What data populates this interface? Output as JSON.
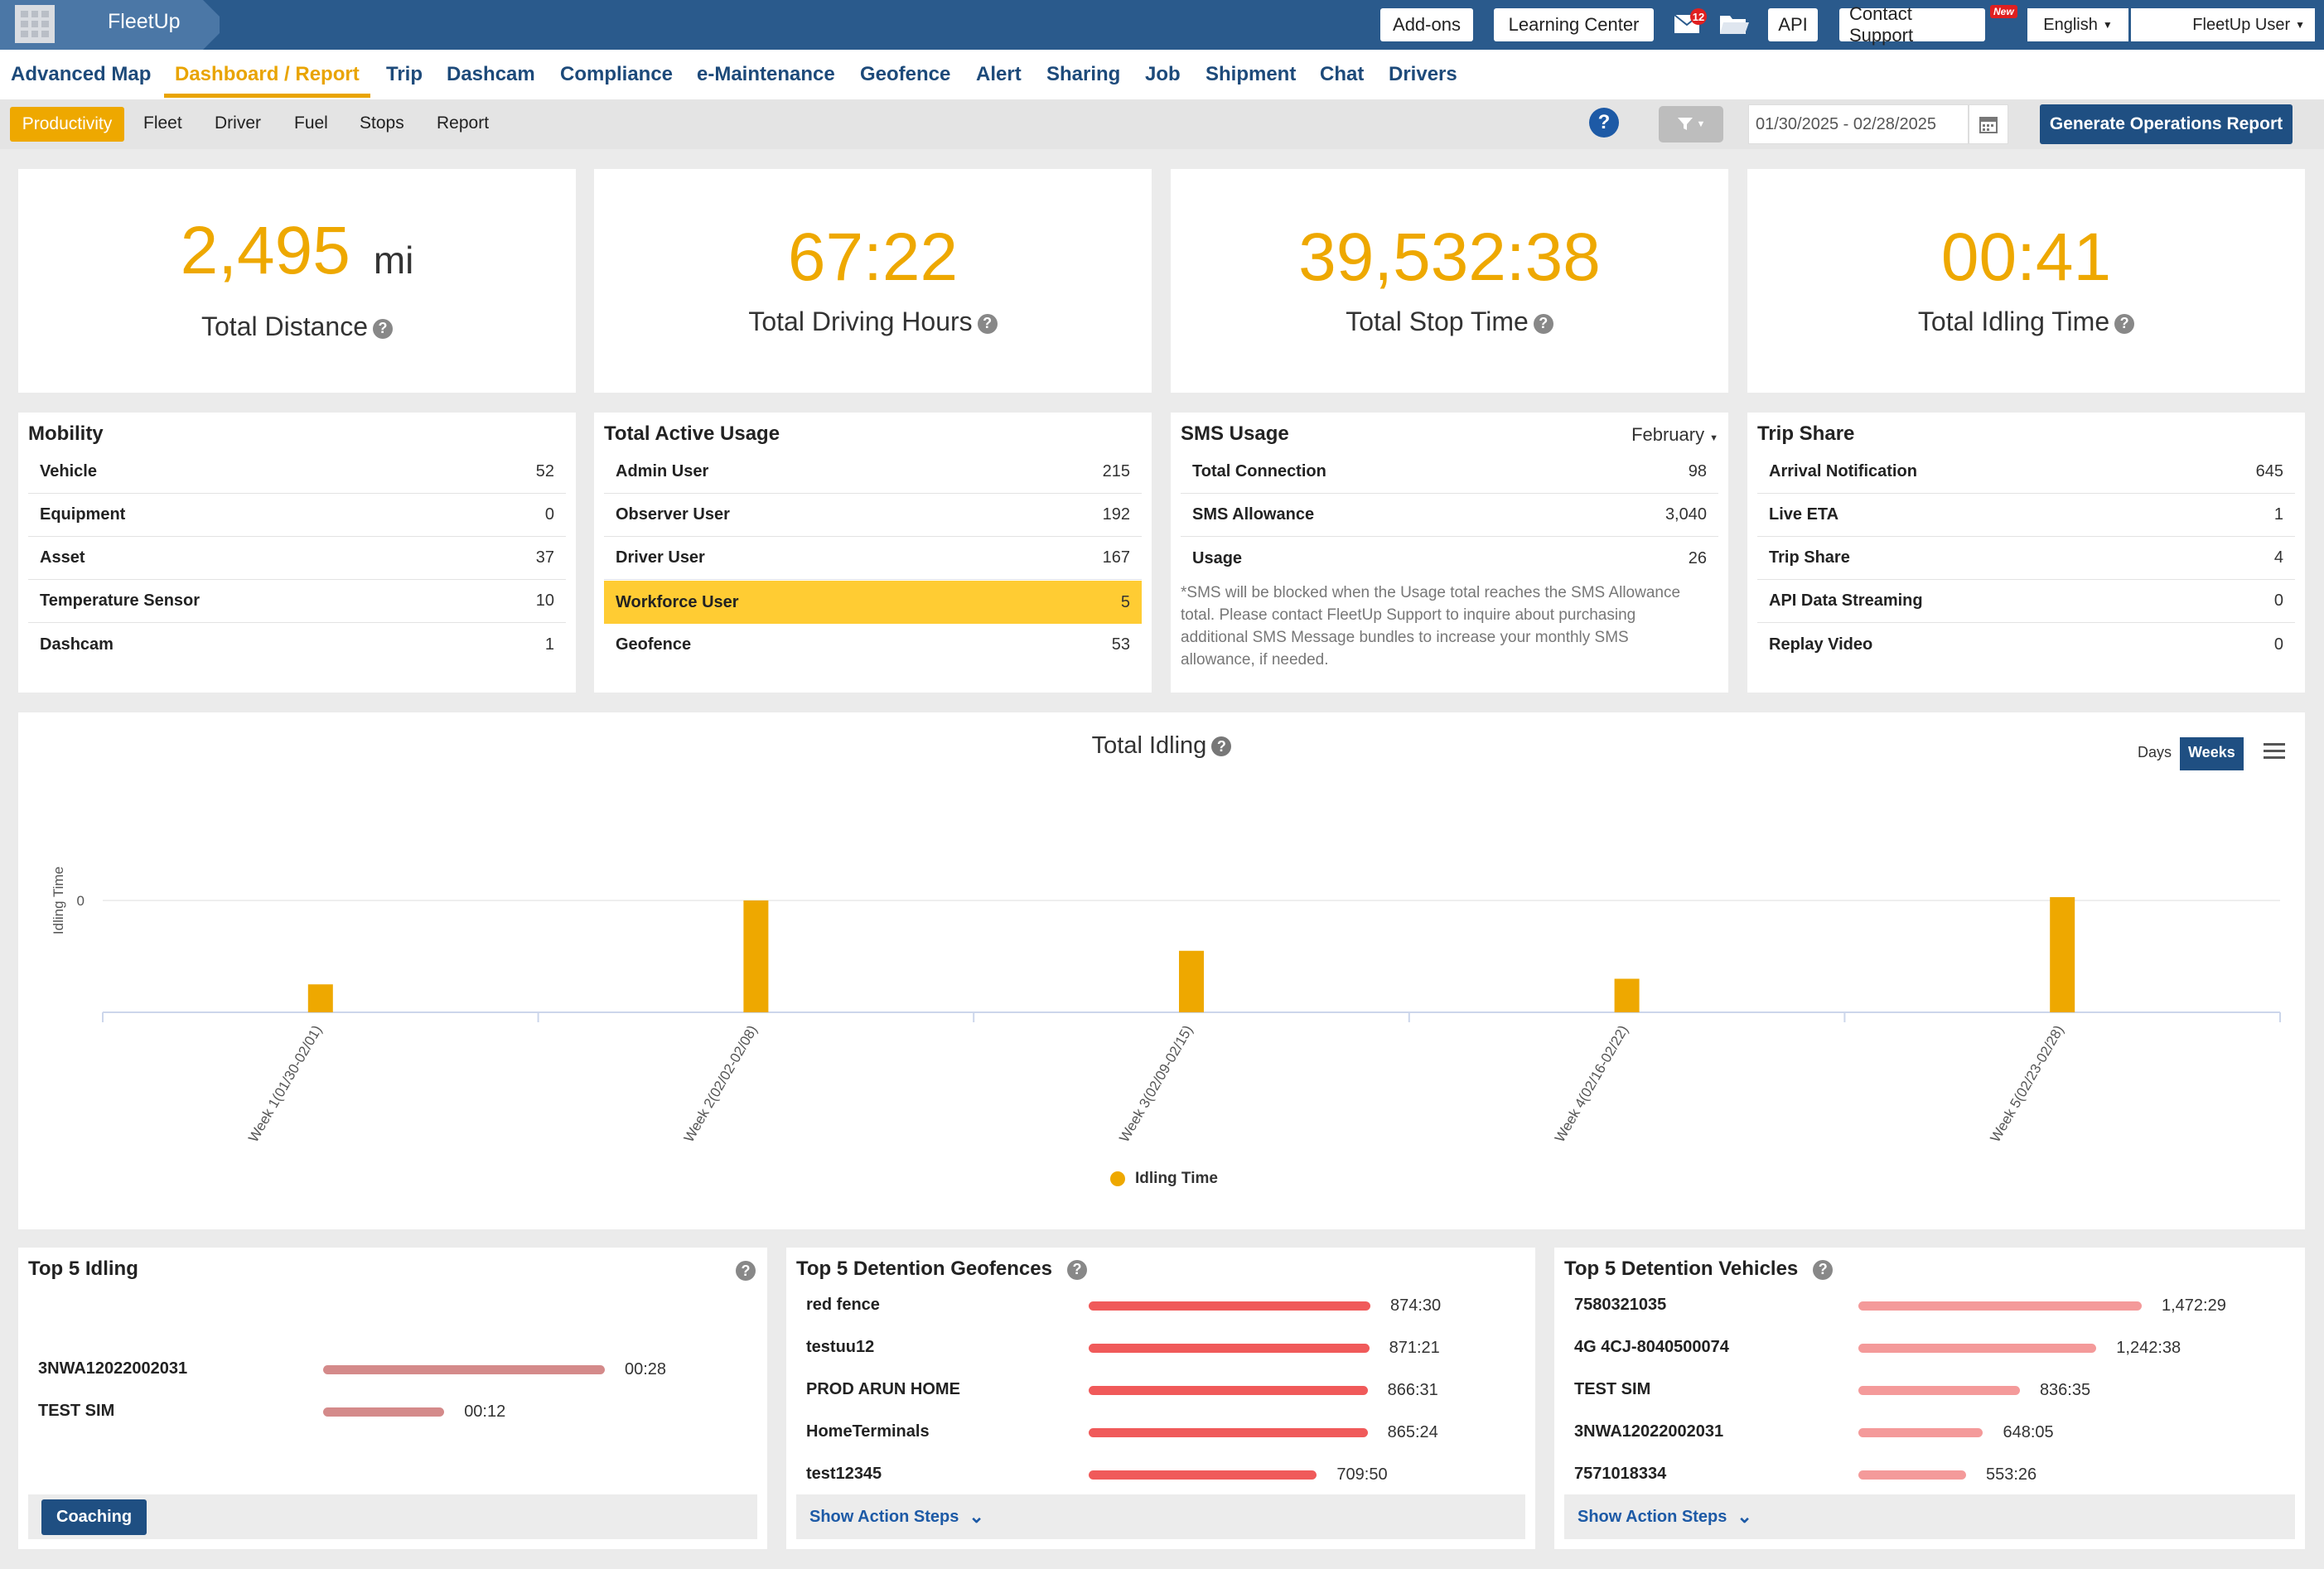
{
  "app": {
    "brand": "FleetUp",
    "mail_badge": "12",
    "new_badge": "New"
  },
  "topbar": {
    "addons": "Add-ons",
    "learning": "Learning Center",
    "api": "API",
    "contact": "Contact Support",
    "language": "English",
    "user": "FleetUp User"
  },
  "nav": [
    "Advanced Map",
    "Dashboard / Report",
    "Trip",
    "Dashcam",
    "Compliance",
    "e-Maintenance",
    "Geofence",
    "Alert",
    "Sharing",
    "Job",
    "Shipment",
    "Chat",
    "Drivers"
  ],
  "subnav": {
    "active": "Productivity",
    "items": [
      "Fleet",
      "Driver",
      "Fuel",
      "Stops",
      "Report"
    ]
  },
  "toolbar": {
    "date_range": "01/30/2025 - 02/28/2025",
    "generate": "Generate Operations Report",
    "help": "?"
  },
  "stats": [
    {
      "value": "2,495",
      "unit": "mi",
      "label": "Total Distance"
    },
    {
      "value": "67:22",
      "label": "Total Driving Hours"
    },
    {
      "value": "39,532:38",
      "label": "Total Stop Time"
    },
    {
      "value": "00:41",
      "label": "Total Idling Time"
    }
  ],
  "mobility": {
    "title": "Mobility",
    "rows": [
      [
        "Vehicle",
        "52"
      ],
      [
        "Equipment",
        "0"
      ],
      [
        "Asset",
        "37"
      ],
      [
        "Temperature Sensor",
        "10"
      ],
      [
        "Dashcam",
        "1"
      ]
    ]
  },
  "active_usage": {
    "title": "Total Active Usage",
    "rows": [
      [
        "Admin User",
        "215"
      ],
      [
        "Observer User",
        "192"
      ],
      [
        "Driver User",
        "167"
      ],
      [
        "Workforce User",
        "5"
      ],
      [
        "Geofence",
        "53"
      ]
    ]
  },
  "sms": {
    "title": "SMS Usage",
    "month": "February",
    "rows": [
      [
        "Total Connection",
        "98"
      ],
      [
        "SMS Allowance",
        "3,040"
      ],
      [
        "Usage",
        "26"
      ]
    ],
    "note": "*SMS will be blocked when the Usage total reaches the SMS Allowance total. Please contact FleetUp Support to inquire about purchasing additional SMS Message bundles to increase your monthly SMS allowance, if needed."
  },
  "trip_share": {
    "title": "Trip Share",
    "rows": [
      [
        "Arrival Notification",
        "645"
      ],
      [
        "Live ETA",
        "1"
      ],
      [
        "Trip Share",
        "4"
      ],
      [
        "API Data Streaming",
        "0"
      ],
      [
        "Replay Video",
        "0"
      ]
    ]
  },
  "chart_data": {
    "type": "bar",
    "title": "Total Idling",
    "ylabel": "Idling Time",
    "xlabel": "",
    "y_tick": "0",
    "categories": [
      "Week 1(01/30-02/01)",
      "Week 2(02/02-02/08)",
      "Week 3(02/09-02/15)",
      "Week 4(02/16-02/22)",
      "Week 5(02/23-02/28)"
    ],
    "series": [
      {
        "name": "Idling Time",
        "values": [
          0.25,
          1.0,
          0.55,
          0.3,
          1.03
        ]
      }
    ],
    "color": "#eea800",
    "toggle": [
      "Days",
      "Weeks"
    ],
    "toggle_active": "Weeks"
  },
  "top_idling": {
    "title": "Top 5 Idling",
    "items": [
      [
        "3NWA12022002031",
        "00:28",
        1.0
      ],
      [
        "TEST SIM",
        "00:12",
        0.43
      ]
    ],
    "button": "Coaching"
  },
  "top_geofences": {
    "title": "Top 5 Detention Geofences",
    "items": [
      [
        "red fence",
        "874:30",
        1.0
      ],
      [
        "testuu12",
        "871:21",
        0.996
      ],
      [
        "PROD ARUN HOME",
        "866:31",
        0.99
      ],
      [
        "HomeTerminals",
        "865:24",
        0.99
      ],
      [
        "test12345",
        "709:50",
        0.81
      ]
    ],
    "action": "Show Action Steps"
  },
  "top_vehicles": {
    "title": "Top 5 Detention Vehicles",
    "items": [
      [
        "7580321035",
        "1,472:29",
        1.0
      ],
      [
        "4G 4CJ-8040500074",
        "1,242:38",
        0.84
      ],
      [
        "TEST SIM",
        "836:35",
        0.57
      ],
      [
        "3NWA12022002031",
        "648:05",
        0.44
      ],
      [
        "7571018334",
        "553:26",
        0.38
      ]
    ],
    "action": "Show Action Steps"
  }
}
